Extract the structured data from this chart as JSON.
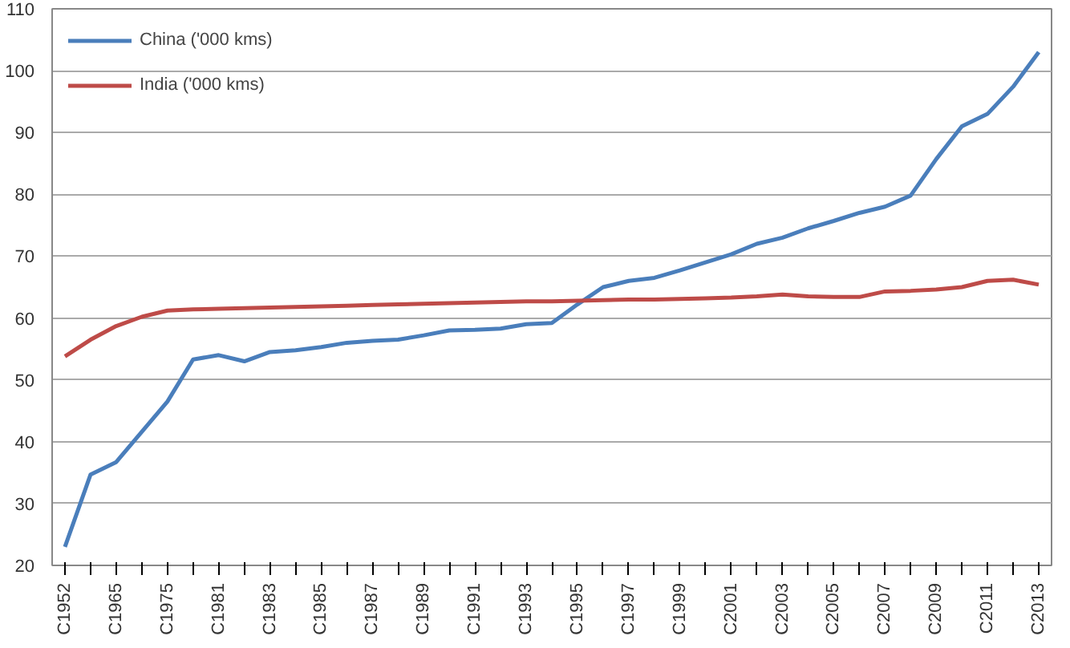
{
  "chart_data": {
    "type": "line",
    "categories": [
      "C1952",
      null,
      "C1965",
      null,
      "C1975",
      null,
      "C1981",
      null,
      "C1983",
      null,
      "C1985",
      null,
      "C1987",
      null,
      "C1989",
      null,
      "C1991",
      null,
      "C1993",
      null,
      "C1995",
      null,
      "C1997",
      null,
      "C1999",
      null,
      "C2001",
      null,
      "C2003",
      null,
      "C2005",
      null,
      "C2007",
      null,
      "C2009",
      null,
      "C2011",
      null,
      "C2013"
    ],
    "series": [
      {
        "name": "China ('000 kms)",
        "color": "#4a7ebb",
        "values": [
          23,
          34.7,
          36.7,
          41.6,
          46.5,
          53.3,
          54,
          53,
          54.5,
          54.8,
          55.3,
          56,
          56.3,
          56.5,
          57.2,
          58,
          58.1,
          58.3,
          59,
          59.2,
          62.2,
          65,
          66,
          66.5,
          67.7,
          69,
          70.3,
          72,
          73,
          74.5,
          75.7,
          77,
          78,
          79.8,
          85.7,
          91,
          93,
          97.4,
          103
        ]
      },
      {
        "name": "India ('000 kms)",
        "color": "#be4b48",
        "values": [
          53.8,
          56.5,
          58.7,
          60.2,
          61.2,
          61.4,
          61.5,
          61.6,
          61.7,
          61.8,
          61.9,
          62,
          62.1,
          62.2,
          62.3,
          62.4,
          62.5,
          62.6,
          62.7,
          62.7,
          62.8,
          62.9,
          63,
          63,
          63.1,
          63.2,
          63.3,
          63.5,
          63.8,
          63.5,
          63.4,
          63.4,
          64.3,
          64.4,
          64.6,
          65,
          66,
          66.2,
          65.4
        ]
      }
    ],
    "ylim": [
      20,
      110
    ],
    "yticks": [
      20,
      30,
      40,
      50,
      60,
      70,
      80,
      90,
      100,
      110
    ],
    "grid": "y",
    "legend": "top left"
  }
}
